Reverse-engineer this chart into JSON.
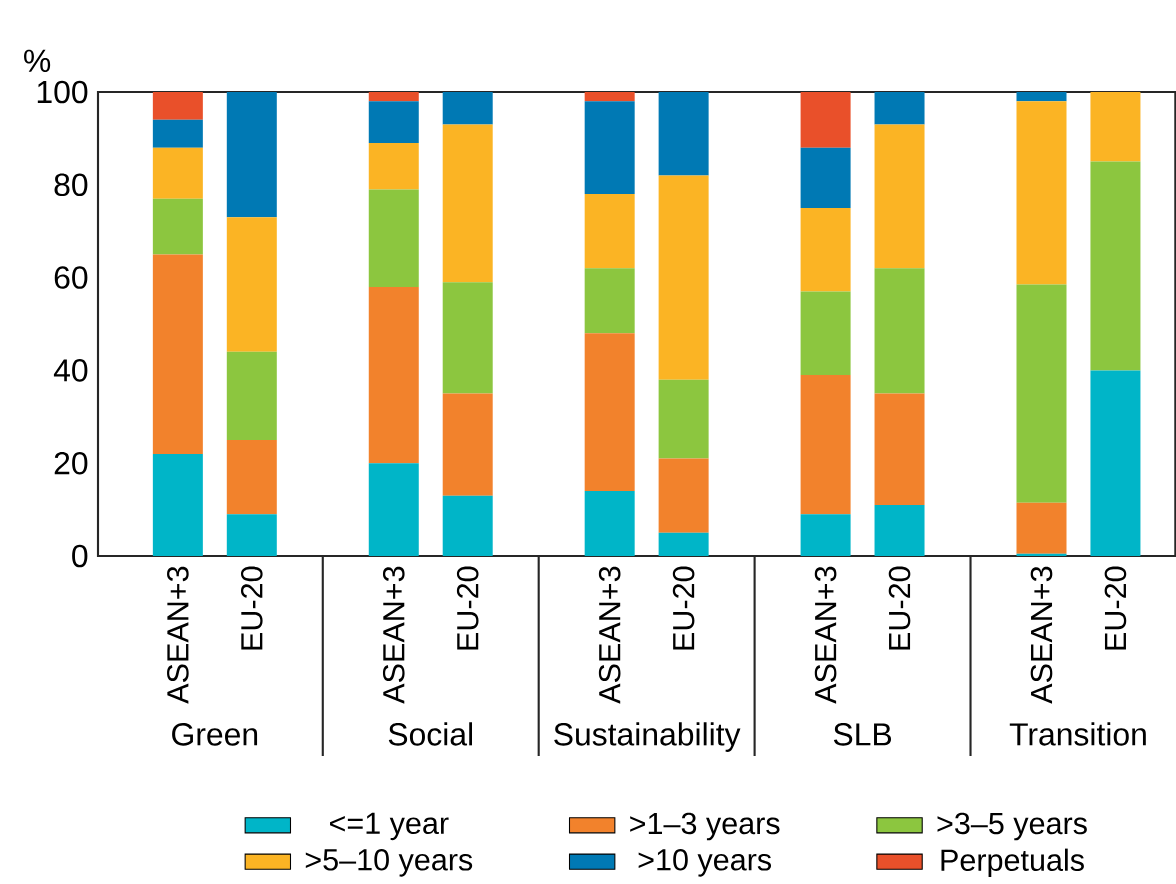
{
  "chart_data": {
    "type": "bar",
    "stacked": true,
    "ylabel": "%",
    "categories": [
      "ASEAN+3",
      "EU-20",
      "ASEAN+3",
      "EU-20",
      "ASEAN+3",
      "EU-20",
      "ASEAN+3",
      "EU-20",
      "ASEAN+3",
      "EU-20"
    ],
    "annotations": [
      "Green",
      "Social",
      "Sustainability",
      "SLB",
      "Transition"
    ],
    "ylim": [
      0,
      100
    ],
    "yticks": [
      0,
      20,
      40,
      60,
      80,
      100
    ],
    "grid": false,
    "legend": "bottom",
    "series": [
      {
        "name": "<=1 year",
        "color": "#00b5c8",
        "values": [
          22,
          9,
          20,
          13,
          14,
          5,
          9,
          11,
          0.5,
          40
        ]
      },
      {
        "name": ">1–3 years",
        "color": "#f2822c",
        "values": [
          43,
          16,
          38,
          22,
          34,
          16,
          30,
          24,
          11,
          0
        ]
      },
      {
        "name": ">3–5 years",
        "color": "#8cc63f",
        "values": [
          12,
          19,
          21,
          24,
          14,
          17,
          18,
          27,
          47,
          45
        ]
      },
      {
        "name": ">5–10 years",
        "color": "#fbb424",
        "values": [
          11,
          29,
          10,
          34,
          16,
          44,
          18,
          31,
          39.5,
          15
        ]
      },
      {
        "name": ">10 years",
        "color": "#0079b4",
        "values": [
          6,
          27,
          9,
          7,
          20,
          18,
          13,
          7,
          2,
          0
        ]
      },
      {
        "name": "Perpetuals",
        "color": "#e9502a",
        "values": [
          6,
          0,
          2,
          0,
          2,
          0,
          12,
          0,
          0,
          0
        ]
      }
    ]
  }
}
